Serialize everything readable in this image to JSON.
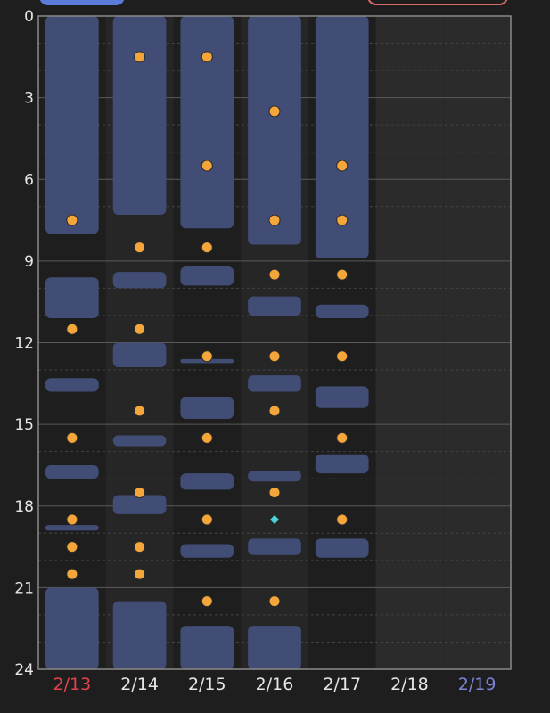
{
  "colors": {
    "background": "#1e1e1e",
    "column_alt": "#262626",
    "column_future": "#2b2b2b",
    "frame": "#8a8a8a",
    "grid_major": "#5a5a5a",
    "grid_minor": "#444444",
    "block_fill": "#414d75",
    "dot_fill": "#f4a63a",
    "dot_stroke": "#2a2a2a",
    "marker_fill": "#4fd1d9",
    "text_default": "#e6e6e6",
    "text_sunday": "#e0414f",
    "text_saturday": "#7b84dd",
    "pill_left": "#5a7bd8",
    "pill_right_border": "#d96a6a"
  },
  "chart_data": {
    "type": "timeline",
    "ylim": [
      0,
      24
    ],
    "y_ticks": [
      "0",
      "3",
      "6",
      "9",
      "12",
      "15",
      "18",
      "21",
      "24"
    ],
    "y_tick_values": [
      0,
      3,
      6,
      9,
      12,
      15,
      18,
      21,
      24
    ],
    "categories": [
      "2/13",
      "2/14",
      "2/15",
      "2/16",
      "2/17",
      "2/18",
      "2/19"
    ],
    "category_colors": [
      "sunday",
      "default",
      "default",
      "default",
      "default",
      "default",
      "saturday"
    ],
    "blocks": [
      {
        "day": 0,
        "start": 0,
        "end": 8.0
      },
      {
        "day": 0,
        "start": 9.6,
        "end": 11.1
      },
      {
        "day": 0,
        "start": 13.3,
        "end": 13.8
      },
      {
        "day": 0,
        "start": 16.5,
        "end": 17.0
      },
      {
        "day": 0,
        "start": 18.7,
        "end": 18.9
      },
      {
        "day": 0,
        "start": 21.0,
        "end": 24.0
      },
      {
        "day": 1,
        "start": 0,
        "end": 7.3
      },
      {
        "day": 1,
        "start": 9.4,
        "end": 10.0
      },
      {
        "day": 1,
        "start": 12.0,
        "end": 12.9
      },
      {
        "day": 1,
        "start": 15.4,
        "end": 15.8
      },
      {
        "day": 1,
        "start": 17.6,
        "end": 18.3
      },
      {
        "day": 1,
        "start": 21.5,
        "end": 24.0
      },
      {
        "day": 2,
        "start": 0,
        "end": 7.8
      },
      {
        "day": 2,
        "start": 9.2,
        "end": 9.9
      },
      {
        "day": 2,
        "start": 12.6,
        "end": 12.75
      },
      {
        "day": 2,
        "start": 14.0,
        "end": 14.8
      },
      {
        "day": 2,
        "start": 16.8,
        "end": 17.4
      },
      {
        "day": 2,
        "start": 19.4,
        "end": 19.9
      },
      {
        "day": 2,
        "start": 22.4,
        "end": 24.0
      },
      {
        "day": 3,
        "start": 0,
        "end": 8.4
      },
      {
        "day": 3,
        "start": 10.3,
        "end": 11.0
      },
      {
        "day": 3,
        "start": 13.2,
        "end": 13.8
      },
      {
        "day": 3,
        "start": 16.7,
        "end": 17.1
      },
      {
        "day": 3,
        "start": 19.2,
        "end": 19.8
      },
      {
        "day": 3,
        "start": 22.4,
        "end": 24.0
      },
      {
        "day": 4,
        "start": 0,
        "end": 8.9
      },
      {
        "day": 4,
        "start": 10.6,
        "end": 11.1
      },
      {
        "day": 4,
        "start": 13.6,
        "end": 14.4
      },
      {
        "day": 4,
        "start": 16.1,
        "end": 16.8
      },
      {
        "day": 4,
        "start": 19.2,
        "end": 19.9
      }
    ],
    "dots": [
      {
        "day": 0,
        "time": 7.5
      },
      {
        "day": 0,
        "time": 11.5
      },
      {
        "day": 0,
        "time": 15.5
      },
      {
        "day": 0,
        "time": 18.5
      },
      {
        "day": 0,
        "time": 19.5
      },
      {
        "day": 0,
        "time": 20.5
      },
      {
        "day": 1,
        "time": 1.5
      },
      {
        "day": 1,
        "time": 8.5
      },
      {
        "day": 1,
        "time": 11.5
      },
      {
        "day": 1,
        "time": 14.5
      },
      {
        "day": 1,
        "time": 17.5
      },
      {
        "day": 1,
        "time": 19.5
      },
      {
        "day": 1,
        "time": 20.5
      },
      {
        "day": 2,
        "time": 1.5
      },
      {
        "day": 2,
        "time": 5.5
      },
      {
        "day": 2,
        "time": 8.5
      },
      {
        "day": 2,
        "time": 12.5
      },
      {
        "day": 2,
        "time": 15.5
      },
      {
        "day": 2,
        "time": 18.5
      },
      {
        "day": 2,
        "time": 21.5
      },
      {
        "day": 3,
        "time": 3.5
      },
      {
        "day": 3,
        "time": 7.5
      },
      {
        "day": 3,
        "time": 9.5
      },
      {
        "day": 3,
        "time": 12.5
      },
      {
        "day": 3,
        "time": 14.5
      },
      {
        "day": 3,
        "time": 17.5
      },
      {
        "day": 3,
        "time": 21.5
      },
      {
        "day": 4,
        "time": 5.5
      },
      {
        "day": 4,
        "time": 7.5
      },
      {
        "day": 4,
        "time": 9.5
      },
      {
        "day": 4,
        "time": 12.5
      },
      {
        "day": 4,
        "time": 15.5
      },
      {
        "day": 4,
        "time": 18.5
      }
    ],
    "markers": [
      {
        "day": 3,
        "time": 18.5,
        "shape": "diamond"
      }
    ],
    "future_days": [
      5,
      6
    ]
  }
}
